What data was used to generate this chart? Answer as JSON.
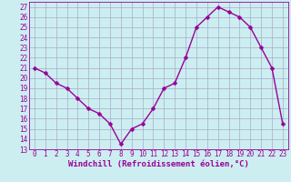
{
  "x": [
    0,
    1,
    2,
    3,
    4,
    5,
    6,
    7,
    8,
    9,
    10,
    11,
    12,
    13,
    14,
    15,
    16,
    17,
    18,
    19,
    20,
    21,
    22,
    23
  ],
  "y": [
    21,
    20.5,
    19.5,
    19,
    18,
    17,
    16.5,
    15.5,
    13.5,
    15,
    15.5,
    17,
    19,
    19.5,
    22,
    25,
    26,
    27,
    26.5,
    26,
    25,
    23,
    21,
    15.5
  ],
  "line_color": "#990099",
  "marker_color": "#990099",
  "bg_color": "#cceef0",
  "grid_color": "#aaaacc",
  "xlabel": "Windchill (Refroidissement éolien,°C)",
  "xlim": [
    -0.5,
    23.5
  ],
  "ylim": [
    13,
    27.5
  ],
  "yticks": [
    13,
    14,
    15,
    16,
    17,
    18,
    19,
    20,
    21,
    22,
    23,
    24,
    25,
    26,
    27
  ],
  "xticks": [
    0,
    1,
    2,
    3,
    4,
    5,
    6,
    7,
    8,
    9,
    10,
    11,
    12,
    13,
    14,
    15,
    16,
    17,
    18,
    19,
    20,
    21,
    22,
    23
  ],
  "tick_fontsize": 5.5,
  "xlabel_fontsize": 6.5,
  "line_width": 1.0,
  "marker_size": 2.5
}
